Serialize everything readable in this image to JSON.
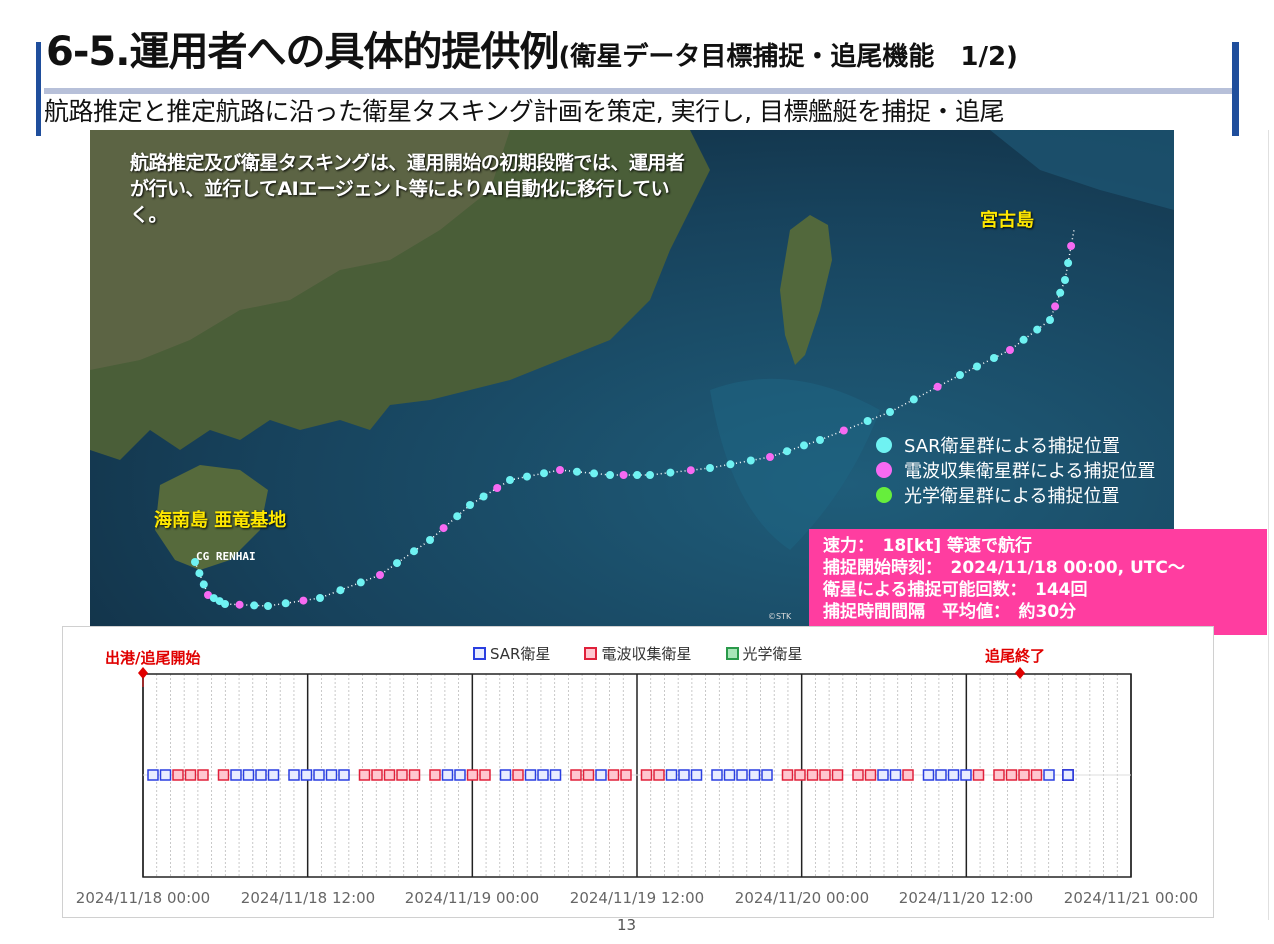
{
  "title": {
    "main": "6-5.運用者への具体的提供例",
    "sub": "(衛星データ目標捕捉・追尾機能　1/2)"
  },
  "subtitle": "航路推定と推定航路に沿った衛星タスキング計画を策定, 実行し, 目標艦艇を捕捉・追尾",
  "map": {
    "note": "航路推定及び衛星タスキングは、運用開始の初期段階では、運用者が行い、並行してAIエージェント等によりAI自動化に移行していく。",
    "label_miyako": "宮古島",
    "label_hainan": "海南島 亜竜基地",
    "ship_label": "CG RENHAI",
    "copyright": "©STK",
    "legend": [
      {
        "label": "SAR衛星群による捕捉位置",
        "color": "#6ff2f2"
      },
      {
        "label": "電波収集衛星群による捕捉位置",
        "color": "#f76af2"
      },
      {
        "label": "光学衛星群による捕捉位置",
        "color": "#66ee3c"
      }
    ]
  },
  "stats": {
    "speed": "速力：　18[kt] 等速で航行",
    "start_time": "捕捉開始時刻：　2024/11/18 00:00, UTC〜",
    "capture_count": "衛星による捕捉可能回数：　144回",
    "interval": "捕捉時間間隔　平均値：　約30分"
  },
  "timeline": {
    "start_label": "出港/追尾開始",
    "end_label": "追尾終了",
    "legend": [
      {
        "label": "SAR衛星",
        "color": "#2a3fe0",
        "fill": "#e8ecff"
      },
      {
        "label": "電波収集衛星",
        "color": "#e0203a",
        "fill": "#ffc6cf"
      },
      {
        "label": "光学衛星",
        "color": "#2a9a4a",
        "fill": "#a8e6b8"
      }
    ],
    "x_ticks": [
      "2024/11/18 00:00",
      "2024/11/18 12:00",
      "2024/11/19 00:00",
      "2024/11/19 12:00",
      "2024/11/20 00:00",
      "2024/11/20 12:00",
      "2024/11/21 00:00"
    ]
  },
  "page_number": "13"
}
